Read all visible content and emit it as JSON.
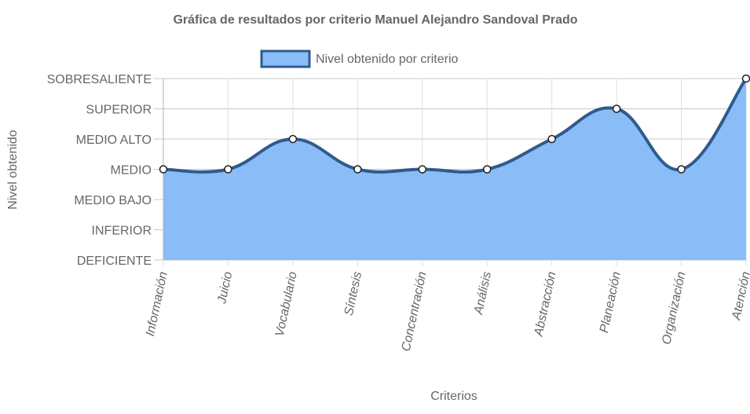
{
  "chart_data": {
    "type": "area",
    "title": "Gráfica de resultados por criterio Manuel Alejandro Sandoval Prado",
    "xlabel": "Criterios",
    "ylabel": "Nivel obtenido",
    "legend_position": "top",
    "grid": true,
    "y_levels": [
      "DEFICIENTE",
      "INFERIOR",
      "MEDIO BAJO",
      "MEDIO",
      "MEDIO ALTO",
      "SUPERIOR",
      "SOBRESALIENTE"
    ],
    "ylim": [
      0,
      6
    ],
    "categories": [
      "Información",
      "Juicio",
      "Vocabulario",
      "Síntesis",
      "Concentración",
      "Análisis",
      "Abstracción",
      "Planeación",
      "Organización",
      "Atención"
    ],
    "series": [
      {
        "name": "Nivel obtenido por criterio",
        "values": [
          3,
          3,
          4,
          3,
          3,
          3,
          4,
          5,
          3,
          6
        ],
        "fill_color": "#8abcf7",
        "line_color": "#2f5b8c"
      }
    ]
  }
}
